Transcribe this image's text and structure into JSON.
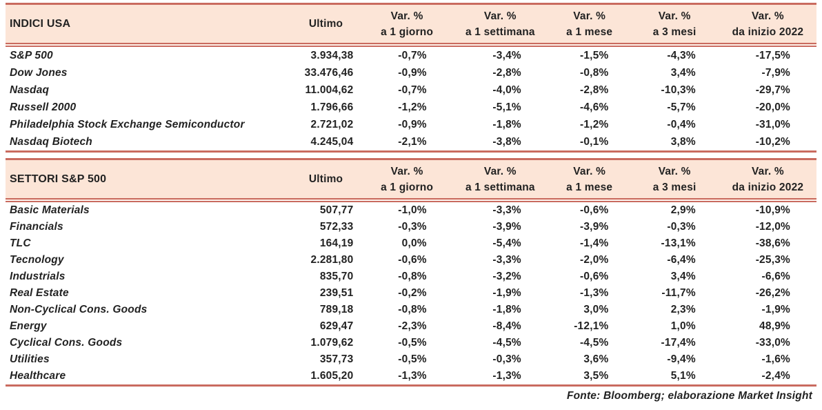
{
  "colors": {
    "band": "#fce5d7",
    "rule": "#c96b5f",
    "ink": "#222222"
  },
  "footer": {
    "source_note": "Fonte: Bloomberg; elaborazione Market Insight"
  },
  "tables": [
    {
      "title": "INDICI USA",
      "last_header": "Ultimo",
      "var_headers": [
        {
          "l1": "Var. %",
          "l2": "a 1 giorno"
        },
        {
          "l1": "Var. %",
          "l2": "a 1 settimana"
        },
        {
          "l1": "Var. %",
          "l2": "a 1 mese"
        },
        {
          "l1": "Var. %",
          "l2": "a 3 mesi"
        },
        {
          "l1": "Var. %",
          "l2": "da inizio 2022"
        }
      ],
      "rows": [
        {
          "name": "S&P 500",
          "last": "3.934,38",
          "vars": [
            "-0,7%",
            "-3,4%",
            "-1,5%",
            "-4,3%",
            "-17,5%"
          ]
        },
        {
          "name": "Dow Jones",
          "last": "33.476,46",
          "vars": [
            "-0,9%",
            "-2,8%",
            "-0,8%",
            "3,4%",
            "-7,9%"
          ]
        },
        {
          "name": "Nasdaq",
          "last": "11.004,62",
          "vars": [
            "-0,7%",
            "-4,0%",
            "-2,8%",
            "-10,3%",
            "-29,7%"
          ]
        },
        {
          "name": "Russell 2000",
          "last": "1.796,66",
          "vars": [
            "-1,2%",
            "-5,1%",
            "-4,6%",
            "-5,7%",
            "-20,0%"
          ]
        },
        {
          "name": "Philadelphia Stock Exchange Semiconductor",
          "last": "2.721,02",
          "vars": [
            "-0,9%",
            "-1,8%",
            "-1,2%",
            "-0,4%",
            "-31,0%"
          ]
        },
        {
          "name": "Nasdaq Biotech",
          "last": "4.245,04",
          "vars": [
            "-2,1%",
            "-3,8%",
            "-0,1%",
            "3,8%",
            "-10,2%"
          ]
        }
      ]
    },
    {
      "title": "SETTORI S&P 500",
      "last_header": "Ultimo",
      "var_headers": [
        {
          "l1": "Var. %",
          "l2": "a 1 giorno"
        },
        {
          "l1": "Var. %",
          "l2": "a 1 settimana"
        },
        {
          "l1": "Var. %",
          "l2": "a 1 mese"
        },
        {
          "l1": "Var. %",
          "l2": "a 3 mesi"
        },
        {
          "l1": "Var. %",
          "l2": "da inizio 2022"
        }
      ],
      "rows": [
        {
          "name": "Basic Materials",
          "last": "507,77",
          "vars": [
            "-1,0%",
            "-3,3%",
            "-0,6%",
            "2,9%",
            "-10,9%"
          ]
        },
        {
          "name": "Financials",
          "last": "572,33",
          "vars": [
            "-0,3%",
            "-3,9%",
            "-3,9%",
            "-0,3%",
            "-12,0%"
          ]
        },
        {
          "name": "TLC",
          "last": "164,19",
          "vars": [
            "0,0%",
            "-5,4%",
            "-1,4%",
            "-13,1%",
            "-38,6%"
          ]
        },
        {
          "name": "Tecnology",
          "last": "2.281,80",
          "vars": [
            "-0,6%",
            "-3,3%",
            "-2,0%",
            "-6,4%",
            "-25,3%"
          ]
        },
        {
          "name": "Industrials",
          "last": "835,70",
          "vars": [
            "-0,8%",
            "-3,2%",
            "-0,6%",
            "3,4%",
            "-6,6%"
          ]
        },
        {
          "name": "Real Estate",
          "last": "239,51",
          "vars": [
            "-0,2%",
            "-1,9%",
            "-1,3%",
            "-11,7%",
            "-26,2%"
          ]
        },
        {
          "name": "Non-Cyclical Cons. Goods",
          "last": "789,18",
          "vars": [
            "-0,8%",
            "-1,8%",
            "3,0%",
            "2,3%",
            "-1,9%"
          ]
        },
        {
          "name": "Energy",
          "last": "629,47",
          "vars": [
            "-2,3%",
            "-8,4%",
            "-12,1%",
            "1,0%",
            "48,9%"
          ]
        },
        {
          "name": "Cyclical Cons. Goods",
          "last": "1.079,62",
          "vars": [
            "-0,5%",
            "-4,5%",
            "-4,5%",
            "-17,4%",
            "-33,0%"
          ]
        },
        {
          "name": "Utilities",
          "last": "357,73",
          "vars": [
            "-0,5%",
            "-0,3%",
            "3,6%",
            "-9,4%",
            "-1,6%"
          ]
        },
        {
          "name": "Healthcare",
          "last": "1.605,20",
          "vars": [
            "-1,3%",
            "-1,3%",
            "3,5%",
            "5,1%",
            "-2,4%"
          ]
        }
      ]
    }
  ]
}
